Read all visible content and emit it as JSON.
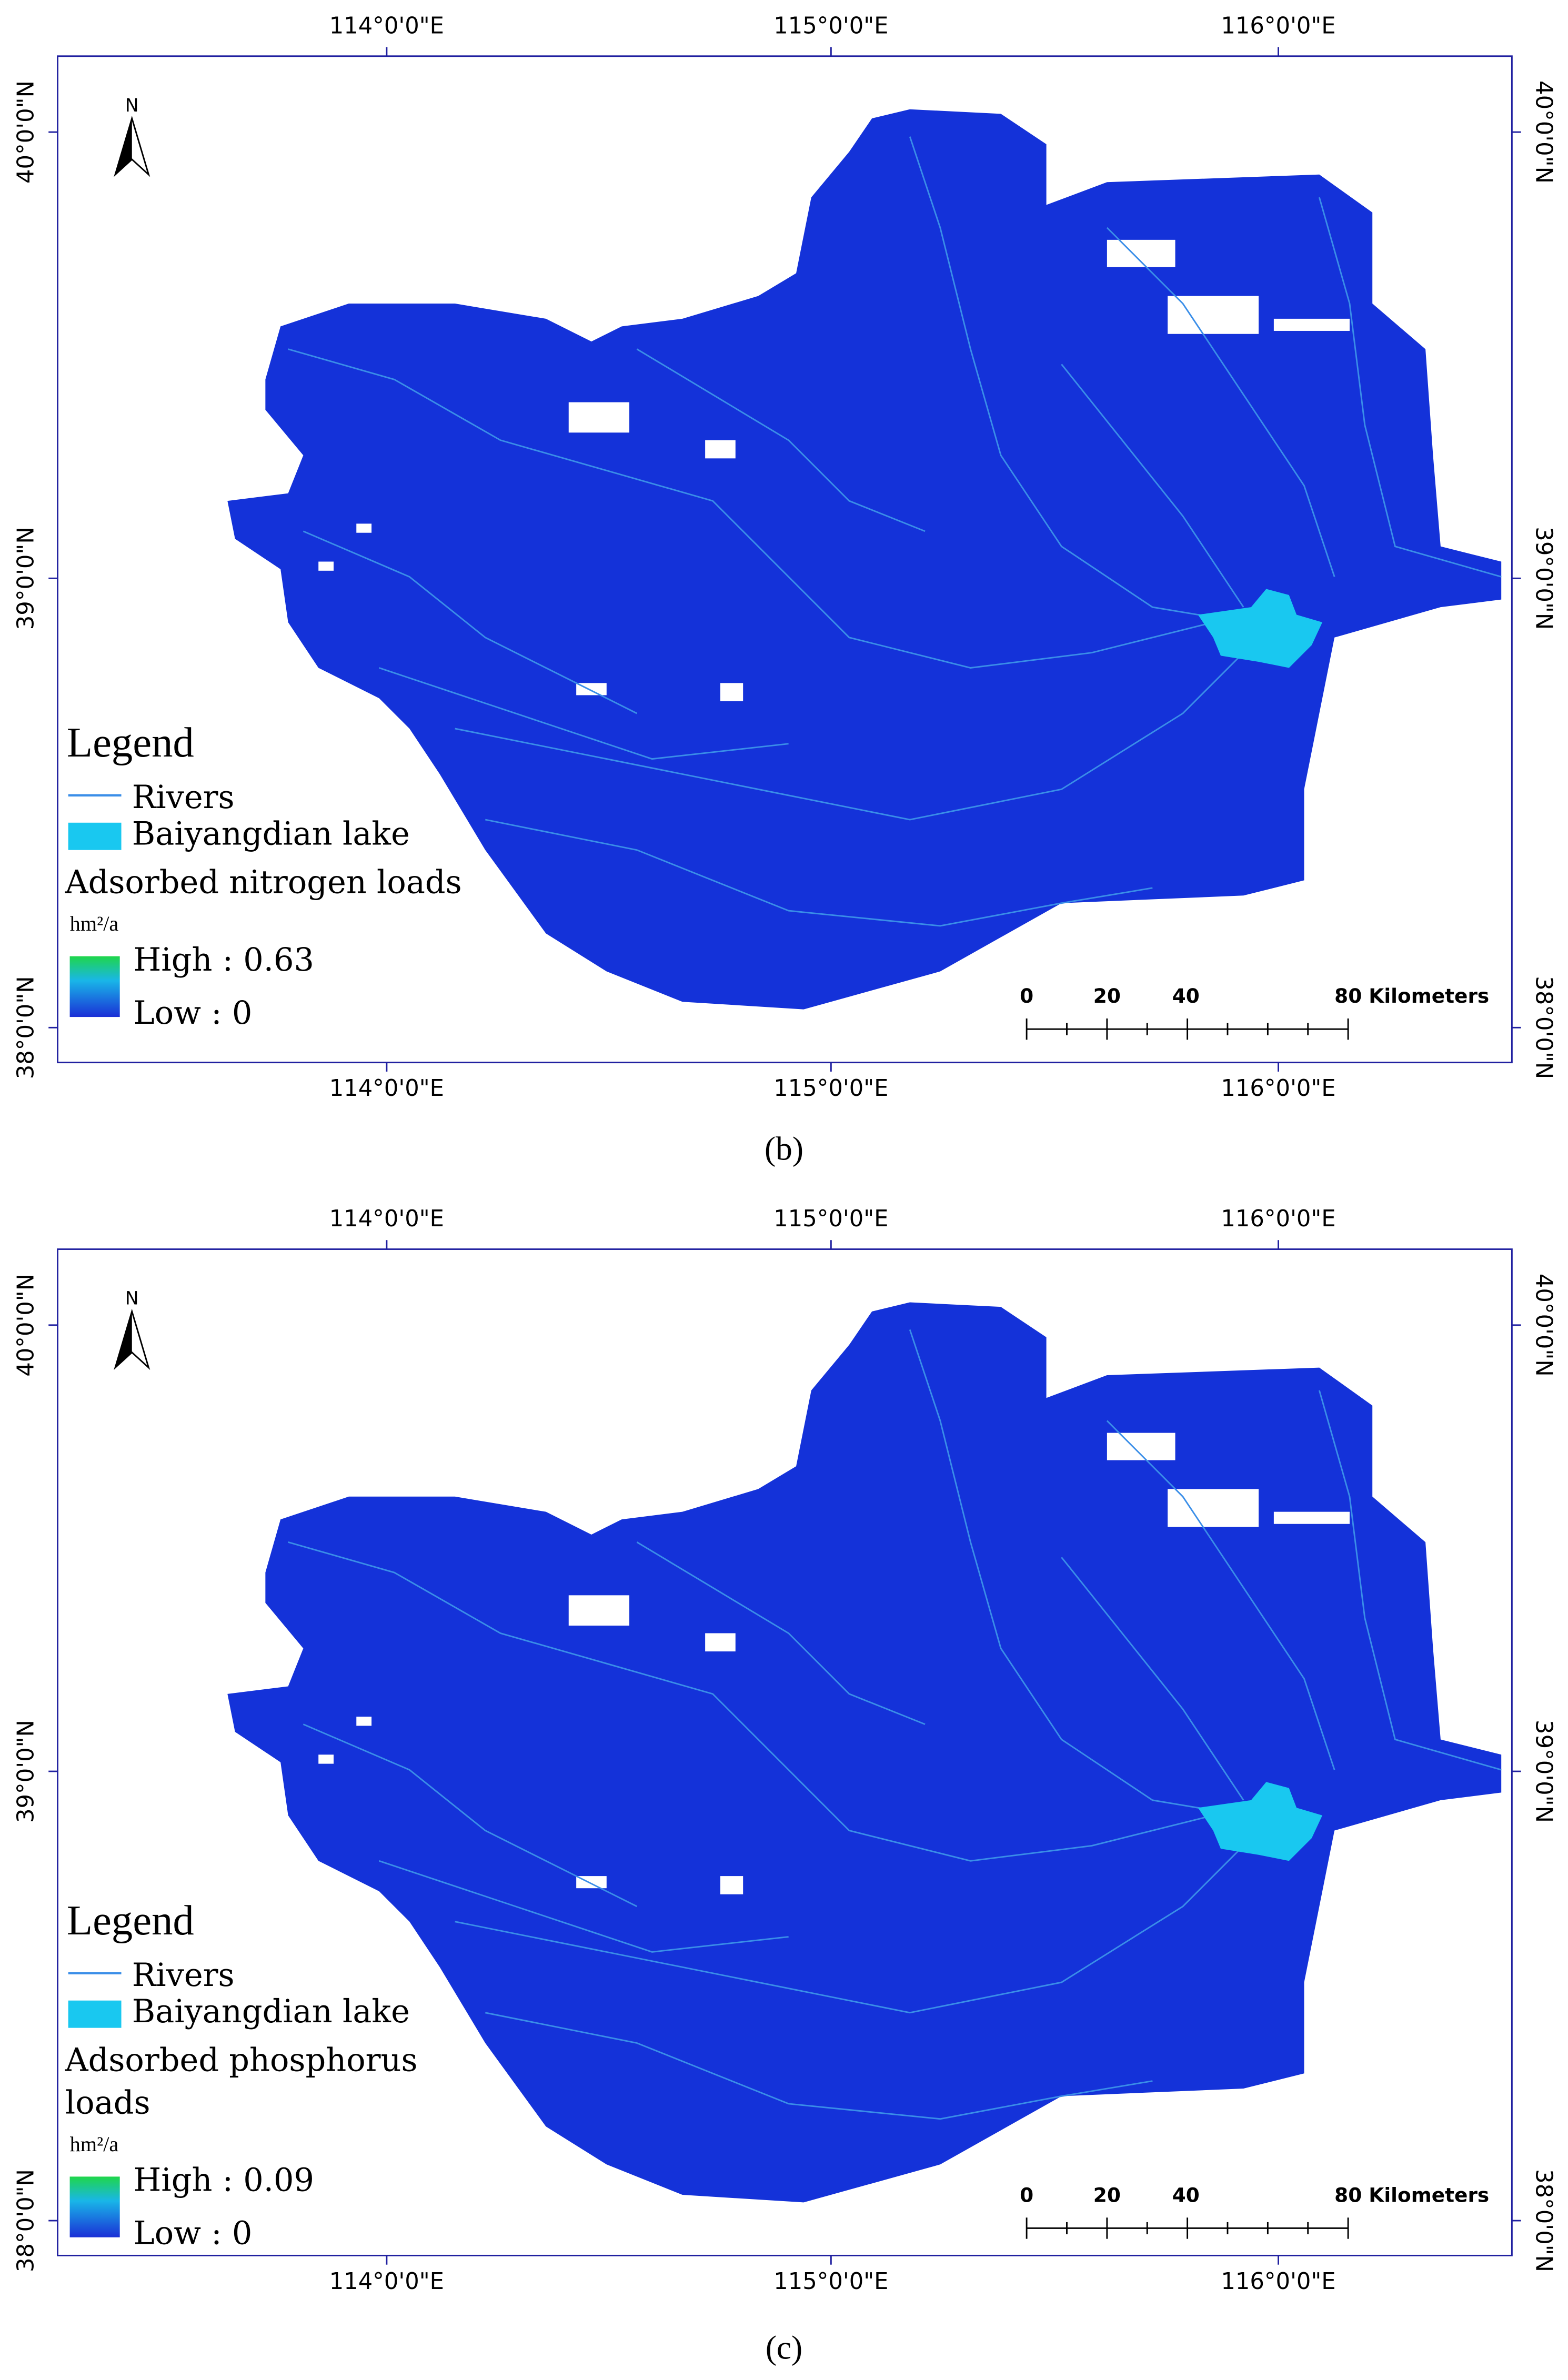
{
  "panels": [
    {
      "x_ticks": [
        "114°0'0\"E",
        "115°0'0\"E",
        "116°0'0\"E"
      ],
      "y_ticks": [
        "40°0'0\"N",
        "39°0'0\"N",
        "38°0'0\"N"
      ],
      "north": "N",
      "legend": {
        "title": "Legend",
        "rivers": "Rivers",
        "lake": "Baiyangdian lake",
        "layer_title_lines": [
          "Adsorbed nitrogen loads"
        ],
        "unit": "hm²/a",
        "high": "High : 0.63",
        "low": "Low : 0"
      },
      "scale_bar": [
        "0",
        "20",
        "40",
        "80 Kilometers"
      ],
      "caption": "(b)"
    },
    {
      "x_ticks": [
        "114°0'0\"E",
        "115°0'0\"E",
        "116°0'0\"E"
      ],
      "y_ticks": [
        "40°0'0\"N",
        "39°0'0\"N",
        "38°0'0\"N"
      ],
      "north": "N",
      "legend": {
        "title": "Legend",
        "rivers": "Rivers",
        "lake": "Baiyangdian lake",
        "layer_title_lines": [
          "Adsorbed phosphorus",
          "loads"
        ],
        "unit": "hm²/a",
        "high": "High : 0.09",
        "low": "Low : 0"
      },
      "scale_bar": [
        "0",
        "20",
        "40",
        "80 Kilometers"
      ],
      "caption": "(c)"
    }
  ]
}
